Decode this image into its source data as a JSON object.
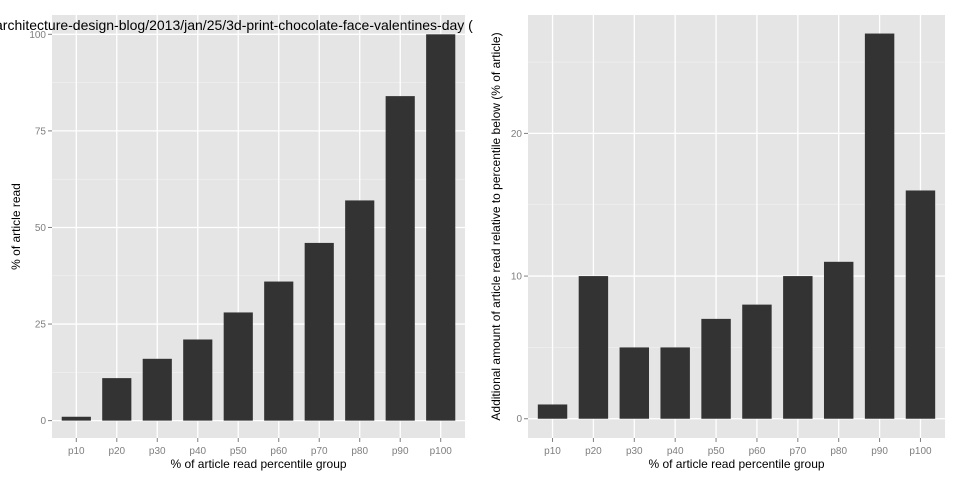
{
  "chart_data": [
    {
      "type": "bar",
      "title": "architecture-design-blog/2013/jan/25/3d-print-chocolate-face-valentines-day (",
      "xlabel": "% of article read percentile group",
      "ylabel": "% of article read",
      "categories": [
        "p10",
        "p20",
        "p30",
        "p40",
        "p50",
        "p60",
        "p70",
        "p80",
        "p90",
        "p100"
      ],
      "values": [
        1,
        11,
        16,
        21,
        28,
        36,
        46,
        57,
        84,
        100
      ],
      "yticks": [
        0,
        25,
        50,
        75,
        100
      ],
      "ylim": [
        -4.5,
        105
      ],
      "grid": true,
      "bar_color": "#333333",
      "panel_color": "#e5e5e5"
    },
    {
      "type": "bar",
      "title": "",
      "xlabel": "% of article read percentile group",
      "ylabel": "Additional amount of article read relative to percentile below (% of article)",
      "categories": [
        "p10",
        "p20",
        "p30",
        "p40",
        "p50",
        "p60",
        "p70",
        "p80",
        "p90",
        "p100"
      ],
      "values": [
        1,
        10,
        5,
        5,
        7,
        8,
        10,
        11,
        27,
        16
      ],
      "yticks": [
        0,
        10,
        20
      ],
      "ylim": [
        -1.35,
        28.3
      ],
      "grid": true,
      "bar_color": "#333333",
      "panel_color": "#e5e5e5"
    }
  ]
}
